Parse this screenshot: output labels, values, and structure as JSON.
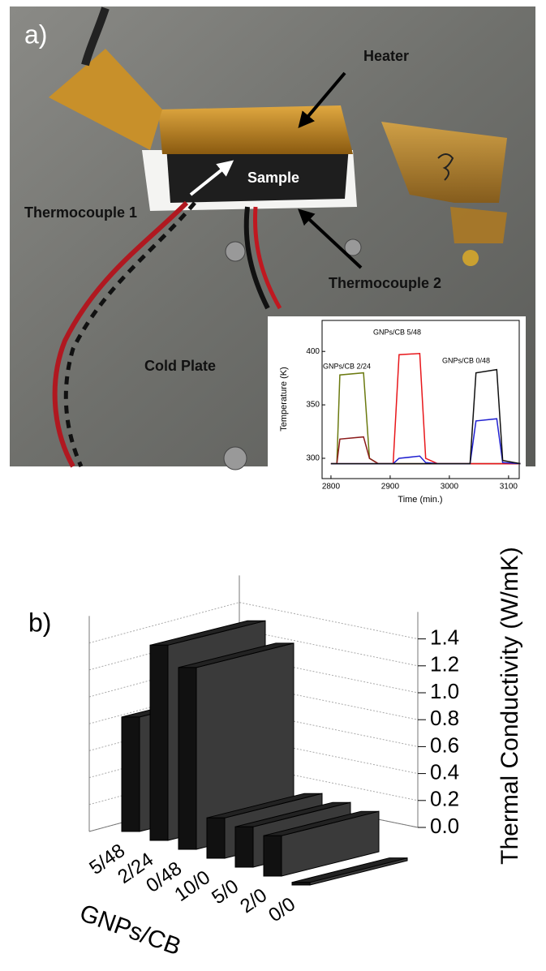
{
  "panel_a": {
    "label": "a)",
    "annotations": {
      "heater": "Heater",
      "sample": "Sample",
      "thermocouple_1": "Thermocouple 1",
      "thermocouple_2": "Thermocouple 2",
      "cold_plate": "Cold Plate"
    }
  },
  "panel_b": {
    "label": "b)"
  },
  "chart_data": [
    {
      "type": "line",
      "x_label": "Time (min.)",
      "y_label": "Temperature (K)",
      "x": [
        2800,
        2810,
        2815,
        2855,
        2865,
        2880,
        2905,
        2915,
        2950,
        2960,
        2980,
        3035,
        3045,
        3080,
        3090,
        3120
      ],
      "series": [
        {
          "color": "#6b7a10",
          "values": [
            295,
            295,
            378,
            380,
            300,
            295,
            295,
            295,
            295,
            295,
            295,
            295,
            295,
            295,
            295,
            295
          ]
        },
        {
          "color": "#8b1a1a",
          "values": [
            295,
            295,
            318,
            320,
            300,
            295,
            295,
            295,
            295,
            295,
            295,
            295,
            295,
            295,
            295,
            295
          ]
        },
        {
          "color": "#e8171b",
          "values": [
            295,
            295,
            295,
            295,
            295,
            295,
            295,
            397,
            398,
            300,
            295,
            295,
            295,
            295,
            295,
            295
          ]
        },
        {
          "color": "#2020d0",
          "values": [
            295,
            295,
            295,
            295,
            295,
            295,
            295,
            300,
            302,
            296,
            295,
            295,
            335,
            337,
            296,
            295
          ]
        },
        {
          "color": "#111111",
          "values": [
            295,
            295,
            295,
            295,
            295,
            295,
            295,
            295,
            295,
            295,
            295,
            295,
            380,
            383,
            298,
            295
          ]
        }
      ],
      "annotations": [
        "GNPs/CB 2/24",
        "GNPs/CB 5/48",
        "GNPs/CB 0/48"
      ],
      "xlim": [
        2785,
        3118
      ],
      "xticks": [
        2800,
        2900,
        3000,
        3100
      ],
      "ylim": [
        281,
        429
      ],
      "yticks": [
        300,
        350,
        400
      ]
    },
    {
      "type": "bar3d",
      "x_label": "GNPs/CB",
      "z_label": "Thermal Conductivity (W/mK)",
      "categories": [
        "5/48",
        "2/24",
        "0/48",
        "10/0",
        "5/0",
        "2/0",
        "0/0"
      ],
      "values": [
        0.85,
        1.45,
        1.35,
        0.3,
        0.3,
        0.3,
        0.02
      ],
      "color": "#111111",
      "zlim": [
        0,
        1.6
      ],
      "zticks": [
        {
          "value": 0,
          "label": "0.0"
        },
        {
          "value": 0.2,
          "label": "0.2"
        },
        {
          "value": 0.4,
          "label": "0.4"
        },
        {
          "value": 0.6,
          "label": "0.6"
        },
        {
          "value": 0.8,
          "label": "0.8"
        },
        {
          "value": 1.0,
          "label": "1.0"
        },
        {
          "value": 1.2,
          "label": "1.2"
        },
        {
          "value": 1.4,
          "label": "1.4"
        }
      ],
      "grid": true
    }
  ]
}
